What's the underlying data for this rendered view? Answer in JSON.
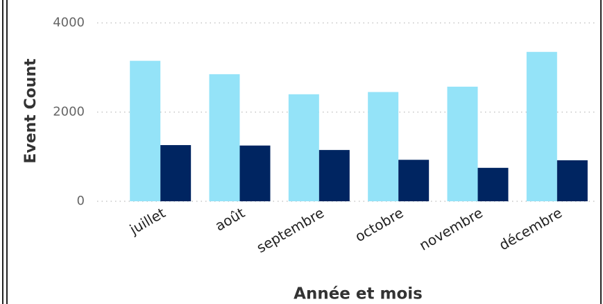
{
  "chart_data": {
    "type": "bar",
    "categories": [
      "juillet",
      "août",
      "septembre",
      "octobre",
      "novembre",
      "décembre"
    ],
    "series": [
      {
        "color": "#94e3f8",
        "values": [
          3150,
          2850,
          2400,
          2450,
          2570,
          3350
        ]
      },
      {
        "color": "#002561",
        "values": [
          1260,
          1250,
          1150,
          930,
          750,
          920
        ]
      }
    ],
    "xlabel": "Année et mois",
    "ylabel": "Event Count",
    "ylim": [
      0,
      4000
    ],
    "yticks": [
      0,
      2000,
      4000
    ],
    "grid": true
  }
}
